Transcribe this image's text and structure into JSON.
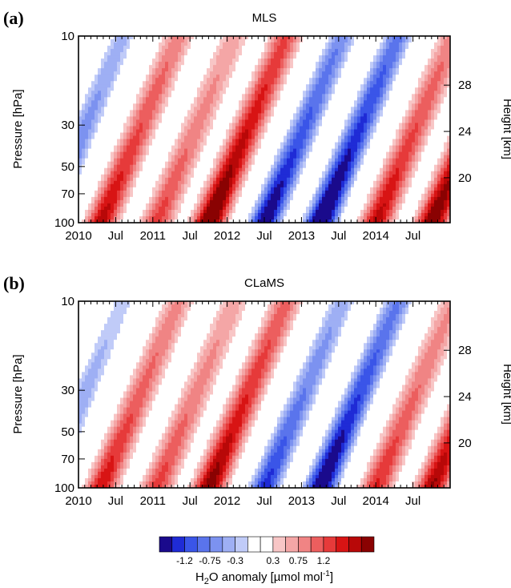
{
  "figure": {
    "colorbar_label_main": "H",
    "colorbar_label_sub": "2",
    "colorbar_label_rest": "O anomaly [µmol mol",
    "colorbar_label_exp": "-1",
    "colorbar_label_close": "]",
    "colorbar_ticks": [
      "-1.2",
      "-0.75",
      "-0.3",
      "0.3",
      "0.75",
      "1.2"
    ],
    "colorbar_colors": [
      "#1a0a8c",
      "#1f2bd6",
      "#3a55e8",
      "#5a74ec",
      "#7c92f0",
      "#9eaff4",
      "#c0cbf8",
      "#ffffff",
      "#ffffff",
      "#f8c6c6",
      "#f4a6a6",
      "#f08484",
      "#ec5e5e",
      "#e63a3a",
      "#d81414",
      "#b80808",
      "#8a0202"
    ]
  },
  "chart_data": [
    {
      "type": "heatmap",
      "panel_label": "(a)",
      "title": "MLS",
      "ylabel": "Pressure [hPa]",
      "y2label": "Height [km]",
      "x_ticks": [
        "2010",
        "Jul",
        "2011",
        "Jul",
        "2012",
        "Jul",
        "2013",
        "Jul",
        "2014",
        "Jul"
      ],
      "y_ticks": [
        "10",
        "30",
        "50",
        "70",
        "100"
      ],
      "y2_ticks": [
        "28",
        "24",
        "20"
      ],
      "x_range": [
        "2010-01",
        "2014-12"
      ],
      "y_range_hPa": [
        100,
        10
      ],
      "y_scale": "log",
      "value_levels": [
        -1.2,
        -0.75,
        -0.3,
        0.3,
        0.75,
        1.2
      ],
      "anomaly_bands": [
        {
          "start": 2009.55,
          "sign": -1,
          "amp": 1.2
        },
        {
          "start": 2010.3,
          "sign": 1,
          "amp": 1.3
        },
        {
          "start": 2011.05,
          "sign": 1,
          "amp": 1.0
        },
        {
          "start": 2011.75,
          "sign": 1,
          "amp": 1.7
        },
        {
          "start": 2012.5,
          "sign": -1,
          "amp": 1.6
        },
        {
          "start": 2013.25,
          "sign": -1,
          "amp": 1.8
        },
        {
          "start": 2014.0,
          "sign": 1,
          "amp": 1.3
        },
        {
          "start": 2014.75,
          "sign": 1,
          "amp": 1.6
        }
      ]
    },
    {
      "type": "heatmap",
      "panel_label": "(b)",
      "title": "CLaMS",
      "ylabel": "Pressure [hPa]",
      "y2label": "Height [km]",
      "x_ticks": [
        "2010",
        "Jul",
        "2011",
        "Jul",
        "2012",
        "Jul",
        "2013",
        "Jul",
        "2014",
        "Jul"
      ],
      "y_ticks": [
        "10",
        "30",
        "50",
        "70",
        "100"
      ],
      "y2_ticks": [
        "28",
        "24",
        "20"
      ],
      "x_range": [
        "2010-01",
        "2014-12"
      ],
      "y_range_hPa": [
        100,
        10
      ],
      "y_scale": "log",
      "value_levels": [
        -1.2,
        -0.75,
        -0.3,
        0.3,
        0.75,
        1.2
      ],
      "anomaly_bands": [
        {
          "start": 2009.55,
          "sign": -1,
          "amp": 1.0
        },
        {
          "start": 2010.3,
          "sign": 1,
          "amp": 1.2
        },
        {
          "start": 2011.05,
          "sign": 1,
          "amp": 1.0
        },
        {
          "start": 2011.75,
          "sign": 1,
          "amp": 1.5
        },
        {
          "start": 2012.5,
          "sign": -1,
          "amp": 1.3
        },
        {
          "start": 2013.25,
          "sign": -1,
          "amp": 1.7
        },
        {
          "start": 2014.0,
          "sign": 1,
          "amp": 1.1
        },
        {
          "start": 2014.75,
          "sign": 1,
          "amp": 1.4
        }
      ]
    }
  ]
}
